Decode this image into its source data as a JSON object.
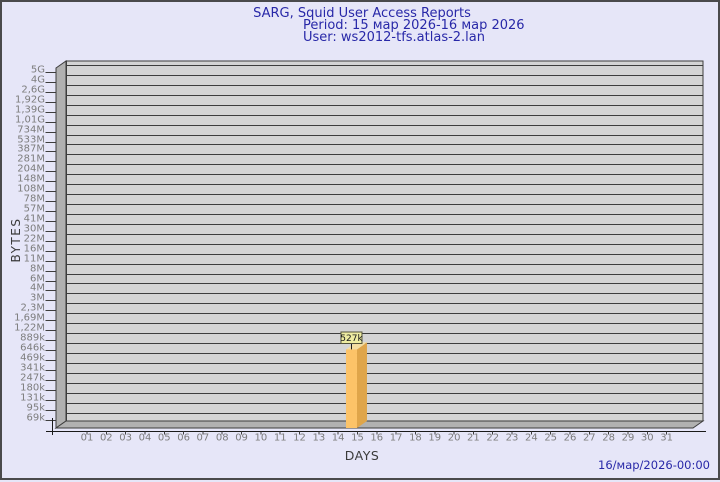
{
  "window": {
    "background": "#e6e6f8",
    "border_color": "#4a4a4c"
  },
  "header": {
    "title": "SARG, Squid User Access Reports",
    "period": "Period: 15 мар 2026-16 мар 2026",
    "user": "User: ws2012-tfs.atlas-2.lan"
  },
  "footer": {
    "generated": "16/мар/2026-00:00"
  },
  "chart_data": {
    "type": "bar",
    "title": "SARG, Squid User Access Reports",
    "subtitle": "Period: 15 мар 2026-16 мар 2026 — User: ws2012-tfs.atlas-2.lan",
    "xlabel": "DAYS",
    "ylabel": "BYTES",
    "legend": false,
    "grid": true,
    "style": "pseudo-3d-bar",
    "x_categories": [
      "01",
      "02",
      "03",
      "04",
      "05",
      "06",
      "07",
      "08",
      "09",
      "10",
      "11",
      "12",
      "13",
      "14",
      "15",
      "16",
      "17",
      "18",
      "19",
      "20",
      "21",
      "22",
      "23",
      "24",
      "25",
      "26",
      "27",
      "28",
      "29",
      "30",
      "31"
    ],
    "y_axis": {
      "scale": "log",
      "min": 69000,
      "max": 5000000000,
      "tick_labels": [
        "5G",
        "4G",
        "2,6G",
        "1,92G",
        "1,39G",
        "1,01G",
        "734M",
        "533M",
        "387M",
        "281M",
        "204M",
        "148M",
        "108M",
        "78M",
        "57M",
        "41M",
        "30M",
        "22M",
        "16M",
        "11M",
        "8M",
        "6M",
        "4M",
        "3M",
        "2,3M",
        "1,69M",
        "1,22M",
        "889k",
        "646k",
        "469k",
        "341k",
        "247k",
        "180k",
        "131k",
        "95k",
        "69k"
      ]
    },
    "series": [
      {
        "name": "bytes",
        "values": [
          0,
          0,
          0,
          0,
          0,
          0,
          0,
          0,
          0,
          0,
          0,
          0,
          0,
          0,
          527000,
          0,
          0,
          0,
          0,
          0,
          0,
          0,
          0,
          0,
          0,
          0,
          0,
          0,
          0,
          0,
          0
        ],
        "value_labels": {
          "15": "527k"
        }
      }
    ],
    "colors": {
      "bar_front": "#fcc368",
      "bar_side": "#dfa54a",
      "bar_top": "#f3dda2",
      "wall_back": "#d4d4d4",
      "wall_side": "#b1b1b1",
      "gridline": "#3d3d3d",
      "axis": "#1a1a1a",
      "tick_label": "#7d7d7d",
      "axis_title": "#3a3a3a",
      "title_text": "#2828a8",
      "annotation_bg": "#eeeca1",
      "annotation_border": "#55553a",
      "annotation_text": "#1a1a1a"
    }
  }
}
